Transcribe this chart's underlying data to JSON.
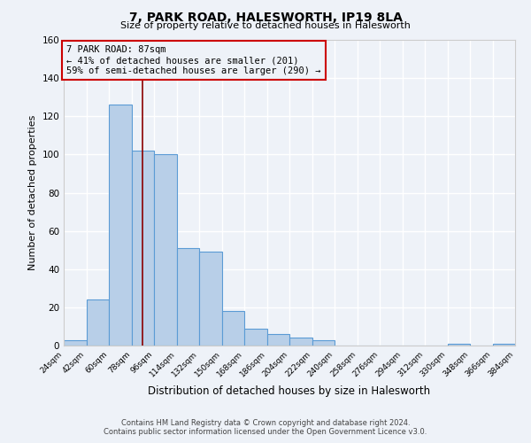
{
  "title": "7, PARK ROAD, HALESWORTH, IP19 8LA",
  "subtitle": "Size of property relative to detached houses in Halesworth",
  "xlabel": "Distribution of detached houses by size in Halesworth",
  "ylabel": "Number of detached properties",
  "bin_edges": [
    24,
    42,
    60,
    78,
    96,
    114,
    132,
    150,
    168,
    186,
    204,
    222,
    240,
    258,
    276,
    294,
    312,
    330,
    348,
    366,
    384
  ],
  "bin_counts": [
    3,
    24,
    126,
    102,
    100,
    51,
    49,
    18,
    9,
    6,
    4,
    3,
    0,
    0,
    0,
    0,
    0,
    1,
    0,
    1
  ],
  "bar_facecolor": "#b8cfe8",
  "bar_edgecolor": "#5b9bd5",
  "property_line_x": 87,
  "property_line_color": "#8b0000",
  "ylim": [
    0,
    160
  ],
  "yticks": [
    0,
    20,
    40,
    60,
    80,
    100,
    120,
    140,
    160
  ],
  "annotation_box_edgecolor": "#cc0000",
  "annotation_text_line1": "7 PARK ROAD: 87sqm",
  "annotation_text_line2": "← 41% of detached houses are smaller (201)",
  "annotation_text_line3": "59% of semi-detached houses are larger (290) →",
  "footer_line1": "Contains HM Land Registry data © Crown copyright and database right 2024.",
  "footer_line2": "Contains public sector information licensed under the Open Government Licence v3.0.",
  "background_color": "#eef2f8",
  "grid_color": "#ffffff"
}
